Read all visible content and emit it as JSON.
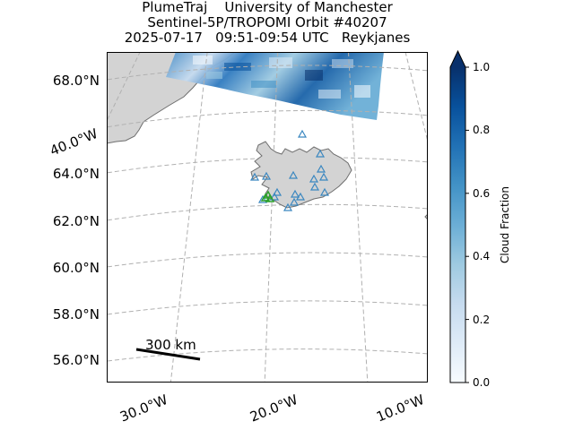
{
  "title": {
    "line1": "PlumeTraj    University of Manchester",
    "line2": "Sentinel-5P/TROPOMI Orbit #40207",
    "line3": "2025-07-17   09:51-09:54 UTC   Reykjanes"
  },
  "map": {
    "lat_labels": [
      "68.0°N",
      "64.0°N",
      "62.0°N",
      "60.0°N",
      "58.0°N",
      "56.0°N"
    ],
    "lon_labels_bottom": [
      "30.0°W",
      "20.0°W",
      "10.0°W"
    ],
    "lon_label_left": "40.0°W",
    "scale_bar_label": "300 km",
    "colors": {
      "land": "#d3d3d3",
      "coast": "#6e6e6e",
      "grid": "#b0b0b0",
      "volcano_marker": "#3a87c0",
      "target_marker": "#2ca02c"
    }
  },
  "colorbar": {
    "label": "Cloud Fraction",
    "ticks": [
      "0.0",
      "0.2",
      "0.4",
      "0.6",
      "0.8",
      "1.0"
    ],
    "min": 0.0,
    "max": 1.0,
    "colormap": "Blues",
    "extend": "max"
  }
}
